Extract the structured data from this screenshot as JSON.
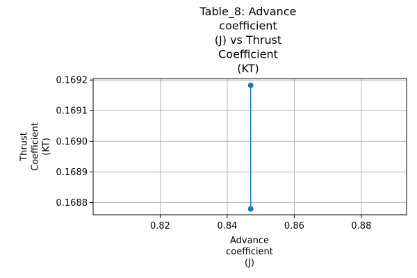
{
  "chart_data": {
    "type": "line",
    "title_lines": [
      "Table_8: Advance",
      "coefficient",
      "(J) vs Thrust",
      "Coefficient",
      "(KT)"
    ],
    "xlabel_lines": [
      "Advance",
      "coefficient",
      "(J)"
    ],
    "ylabel_lines": [
      "Thrust",
      "Coefficient",
      "(KT)"
    ],
    "xlim": [
      0.8,
      0.8935
    ],
    "ylim": [
      0.16876,
      0.169205
    ],
    "xticks": [
      0.82,
      0.84,
      0.86,
      0.88
    ],
    "xtick_labels": [
      "0.82",
      "0.84",
      "0.86",
      "0.88"
    ],
    "yticks": [
      0.1688,
      0.1689,
      0.169,
      0.1691,
      0.1692
    ],
    "ytick_labels": [
      "0.1688",
      "0.1689",
      "0.1690",
      "0.1691",
      "0.1692"
    ],
    "grid": true,
    "series": [
      {
        "x": [
          0.847,
          0.847
        ],
        "y": [
          0.169183,
          0.168779
        ],
        "color": "#1f77b4",
        "marker": "circle"
      }
    ]
  }
}
